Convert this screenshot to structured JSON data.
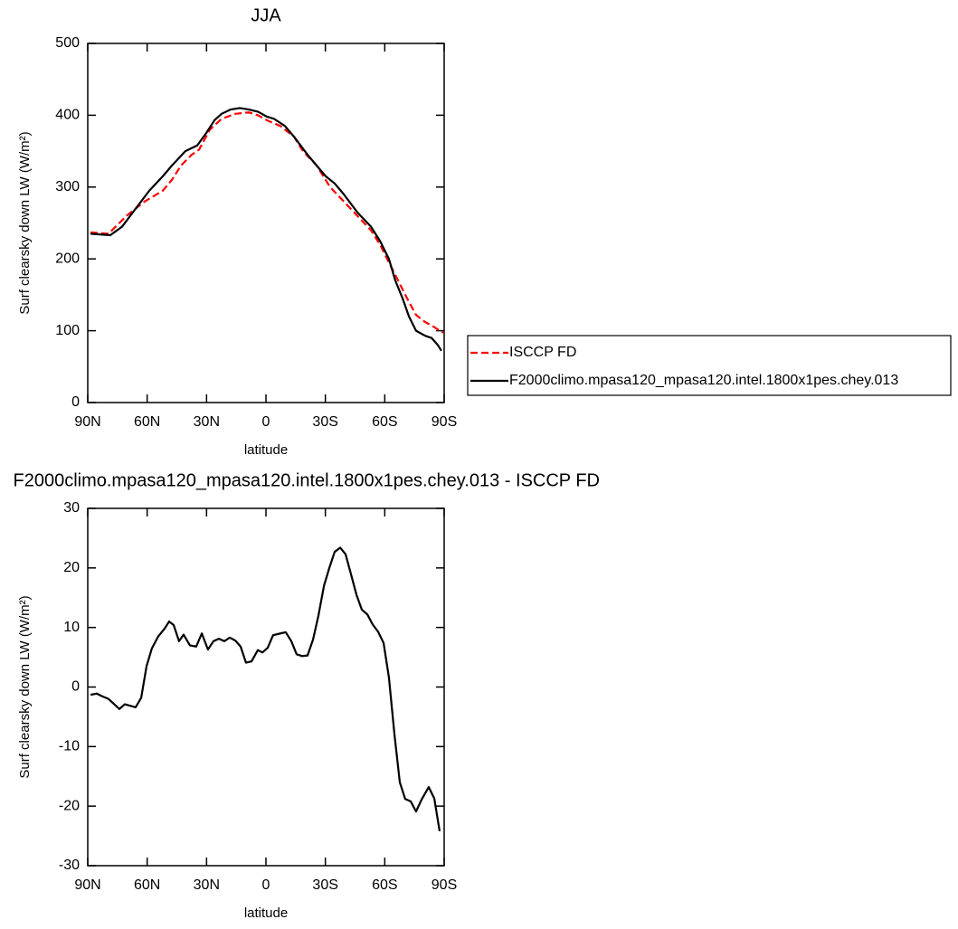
{
  "chart_data": [
    {
      "type": "line",
      "title": "JJA",
      "x_label": "latitude",
      "y_label": "Surf clearsky down LW (W/m²)",
      "xlim": [
        90,
        -90
      ],
      "ylim": [
        0,
        500
      ],
      "xticks": [
        {
          "value": 90,
          "label": "90N"
        },
        {
          "value": 60,
          "label": "60N"
        },
        {
          "value": 30,
          "label": "30N"
        },
        0,
        {
          "value": -30,
          "label": "30S"
        },
        {
          "value": -60,
          "label": "60S"
        },
        {
          "value": -90,
          "label": "90S"
        }
      ],
      "yticks": [
        0,
        100,
        200,
        300,
        400,
        500
      ],
      "legend": "right",
      "series": [
        {
          "name": "ISCCP FD",
          "color": "#ff0000",
          "line_style": "dashed",
          "x": [
            88.6,
            79.5,
            70.4,
            61.2,
            52.1,
            47.5,
            42.9,
            37.5,
            33.8,
            28.3,
            22.4,
            15.5,
            8.7,
            4.1,
            -0.5,
            -7.3,
            -14.2,
            -18.7,
            -25.6,
            -32.4,
            -39.3,
            -46.1,
            -53.0,
            -57.6,
            -62.1,
            -66.7,
            -71.3,
            -75.8,
            -80.4,
            -85.0,
            -89.5
          ],
          "values": [
            237,
            235,
            260,
            280,
            295,
            310,
            330,
            345,
            352,
            380,
            395,
            402,
            404,
            400,
            393,
            385,
            370,
            350,
            330,
            300,
            280,
            260,
            240,
            220,
            195,
            170,
            145,
            122,
            112,
            105,
            97
          ]
        },
        {
          "name": "F2000climo.mpasa120_mpasa120.intel.1800x1pes.chey.013",
          "color": "#000000",
          "line_style": "solid",
          "x": [
            88.6,
            78.6,
            72.6,
            65.8,
            58.9,
            52.1,
            47.5,
            40.7,
            34.7,
            30.2,
            26.0,
            22.4,
            17.8,
            13.2,
            8.7,
            4.1,
            -0.5,
            -4.1,
            -9.6,
            -14.2,
            -21.0,
            -25.6,
            -30.2,
            -34.7,
            -39.3,
            -46.1,
            -53.0,
            -57.6,
            -62.1,
            -65.3,
            -69.0,
            -72.2,
            -75.8,
            -80.4,
            -83.6,
            -86.8,
            -88.6
          ],
          "values": [
            235,
            233,
            245,
            270,
            295,
            315,
            330,
            350,
            358,
            375,
            393,
            402,
            408,
            410,
            408,
            405,
            398,
            395,
            385,
            370,
            345,
            330,
            315,
            305,
            290,
            265,
            245,
            225,
            200,
            170,
            145,
            120,
            100,
            93,
            90,
            80,
            72
          ]
        }
      ]
    },
    {
      "type": "line",
      "title": "F2000climo.mpasa120_mpasa120.intel.1800x1pes.chey.013 - ISCCP FD",
      "x_label": "latitude",
      "y_label": "Surf clearsky down LW (W/m²)",
      "xlim": [
        90,
        -90
      ],
      "ylim": [
        -30,
        30
      ],
      "xticks": [
        {
          "value": 90,
          "label": "90N"
        },
        {
          "value": 60,
          "label": "60N"
        },
        {
          "value": 30,
          "label": "30N"
        },
        0,
        {
          "value": -30,
          "label": "30S"
        },
        {
          "value": -60,
          "label": "60S"
        },
        {
          "value": -90,
          "label": "90S"
        }
      ],
      "yticks": [
        -30,
        -20,
        -10,
        0,
        10,
        20,
        30
      ],
      "series": [
        {
          "color": "#000000",
          "line_style": "solid",
          "x": [
            88.6,
            85.4,
            83.1,
            79.5,
            74.0,
            71.3,
            65.8,
            63.0,
            60.3,
            57.6,
            54.4,
            51.2,
            48.9,
            46.6,
            43.9,
            41.6,
            38.4,
            35.2,
            32.4,
            29.3,
            26.5,
            23.8,
            21.0,
            18.3,
            15.5,
            12.8,
            10.1,
            7.3,
            4.1,
            1.8,
            -0.9,
            -3.6,
            -7.3,
            -10.0,
            -12.8,
            -15.5,
            -18.3,
            -21.0,
            -23.8,
            -26.5,
            -29.3,
            -32.0,
            -34.7,
            -37.5,
            -40.2,
            -42.9,
            -45.7,
            -48.4,
            -51.2,
            -53.9,
            -56.6,
            -59.4,
            -62.1,
            -64.9,
            -67.6,
            -70.3,
            -73.1,
            -75.8,
            -78.6,
            -82.2,
            -85.0,
            -87.7
          ],
          "values": [
            -1.3,
            -1.1,
            -1.5,
            -2,
            -3.7,
            -2.9,
            -3.4,
            -1.8,
            3.5,
            6.5,
            8.5,
            9.8,
            11,
            10.4,
            7.7,
            8.8,
            7,
            6.8,
            9,
            6.3,
            7.7,
            8.1,
            7.7,
            8.3,
            7.8,
            6.8,
            4.1,
            4.3,
            6.2,
            5.8,
            6.6,
            8.7,
            9,
            9.2,
            7.7,
            5.5,
            5.2,
            5.3,
            8,
            12,
            17,
            20,
            22.7,
            23.4,
            22.3,
            19,
            15.5,
            13,
            12.2,
            10.5,
            9.3,
            7.4,
            1.6,
            -8,
            -16,
            -18.8,
            -19.2,
            -20.9,
            -18.9,
            -16.8,
            -18.7,
            -24.2
          ]
        }
      ]
    }
  ]
}
